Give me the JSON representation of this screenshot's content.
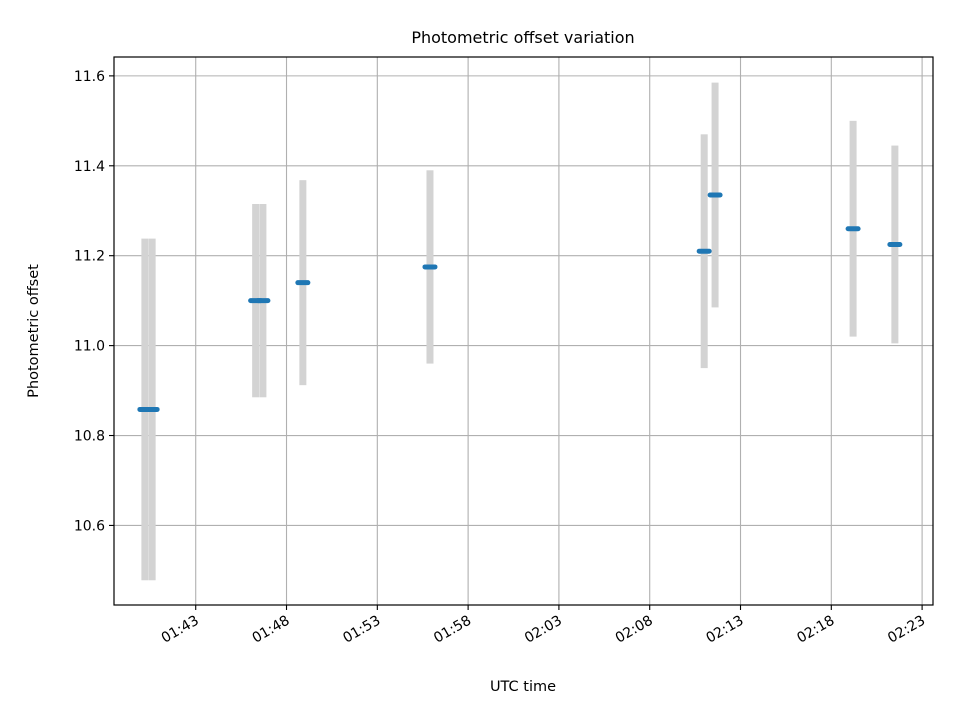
{
  "chart_data": {
    "type": "scatter",
    "title": "Photometric offset variation",
    "xlabel": "UTC time",
    "ylabel": "Photometric offset",
    "x_tick_labels": [
      "01:43",
      "01:48",
      "01:53",
      "01:58",
      "02:03",
      "02:08",
      "02:13",
      "02:18",
      "02:23"
    ],
    "x_tick_minutes": [
      103,
      108,
      113,
      118,
      123,
      128,
      133,
      138,
      143
    ],
    "xlim_minutes": [
      98.5,
      143.6
    ],
    "y_tick_labels": [
      "10.6",
      "10.8",
      "11.0",
      "11.2",
      "11.4",
      "11.6"
    ],
    "y_ticks": [
      10.6,
      10.8,
      11.0,
      11.2,
      11.4,
      11.6
    ],
    "ylim": [
      10.423,
      11.642
    ],
    "grid": true,
    "marker_color": "#1f77b4",
    "errorbar_color": "#d3d3d3",
    "series": [
      {
        "points": [
          {
            "t": 100.2,
            "y": 10.858,
            "err": 0.38
          },
          {
            "t": 100.6,
            "y": 10.858,
            "err": 0.38
          },
          {
            "t": 106.3,
            "y": 11.1,
            "err": 0.215
          },
          {
            "t": 106.7,
            "y": 11.1,
            "err": 0.215
          },
          {
            "t": 108.9,
            "y": 11.14,
            "err": 0.228
          },
          {
            "t": 115.9,
            "y": 11.175,
            "err": 0.215
          },
          {
            "t": 131.0,
            "y": 11.21,
            "err": 0.26
          },
          {
            "t": 131.6,
            "y": 11.335,
            "err": 0.25
          },
          {
            "t": 139.2,
            "y": 11.26,
            "err": 0.24
          },
          {
            "t": 141.5,
            "y": 11.225,
            "err": 0.22
          }
        ]
      }
    ]
  }
}
